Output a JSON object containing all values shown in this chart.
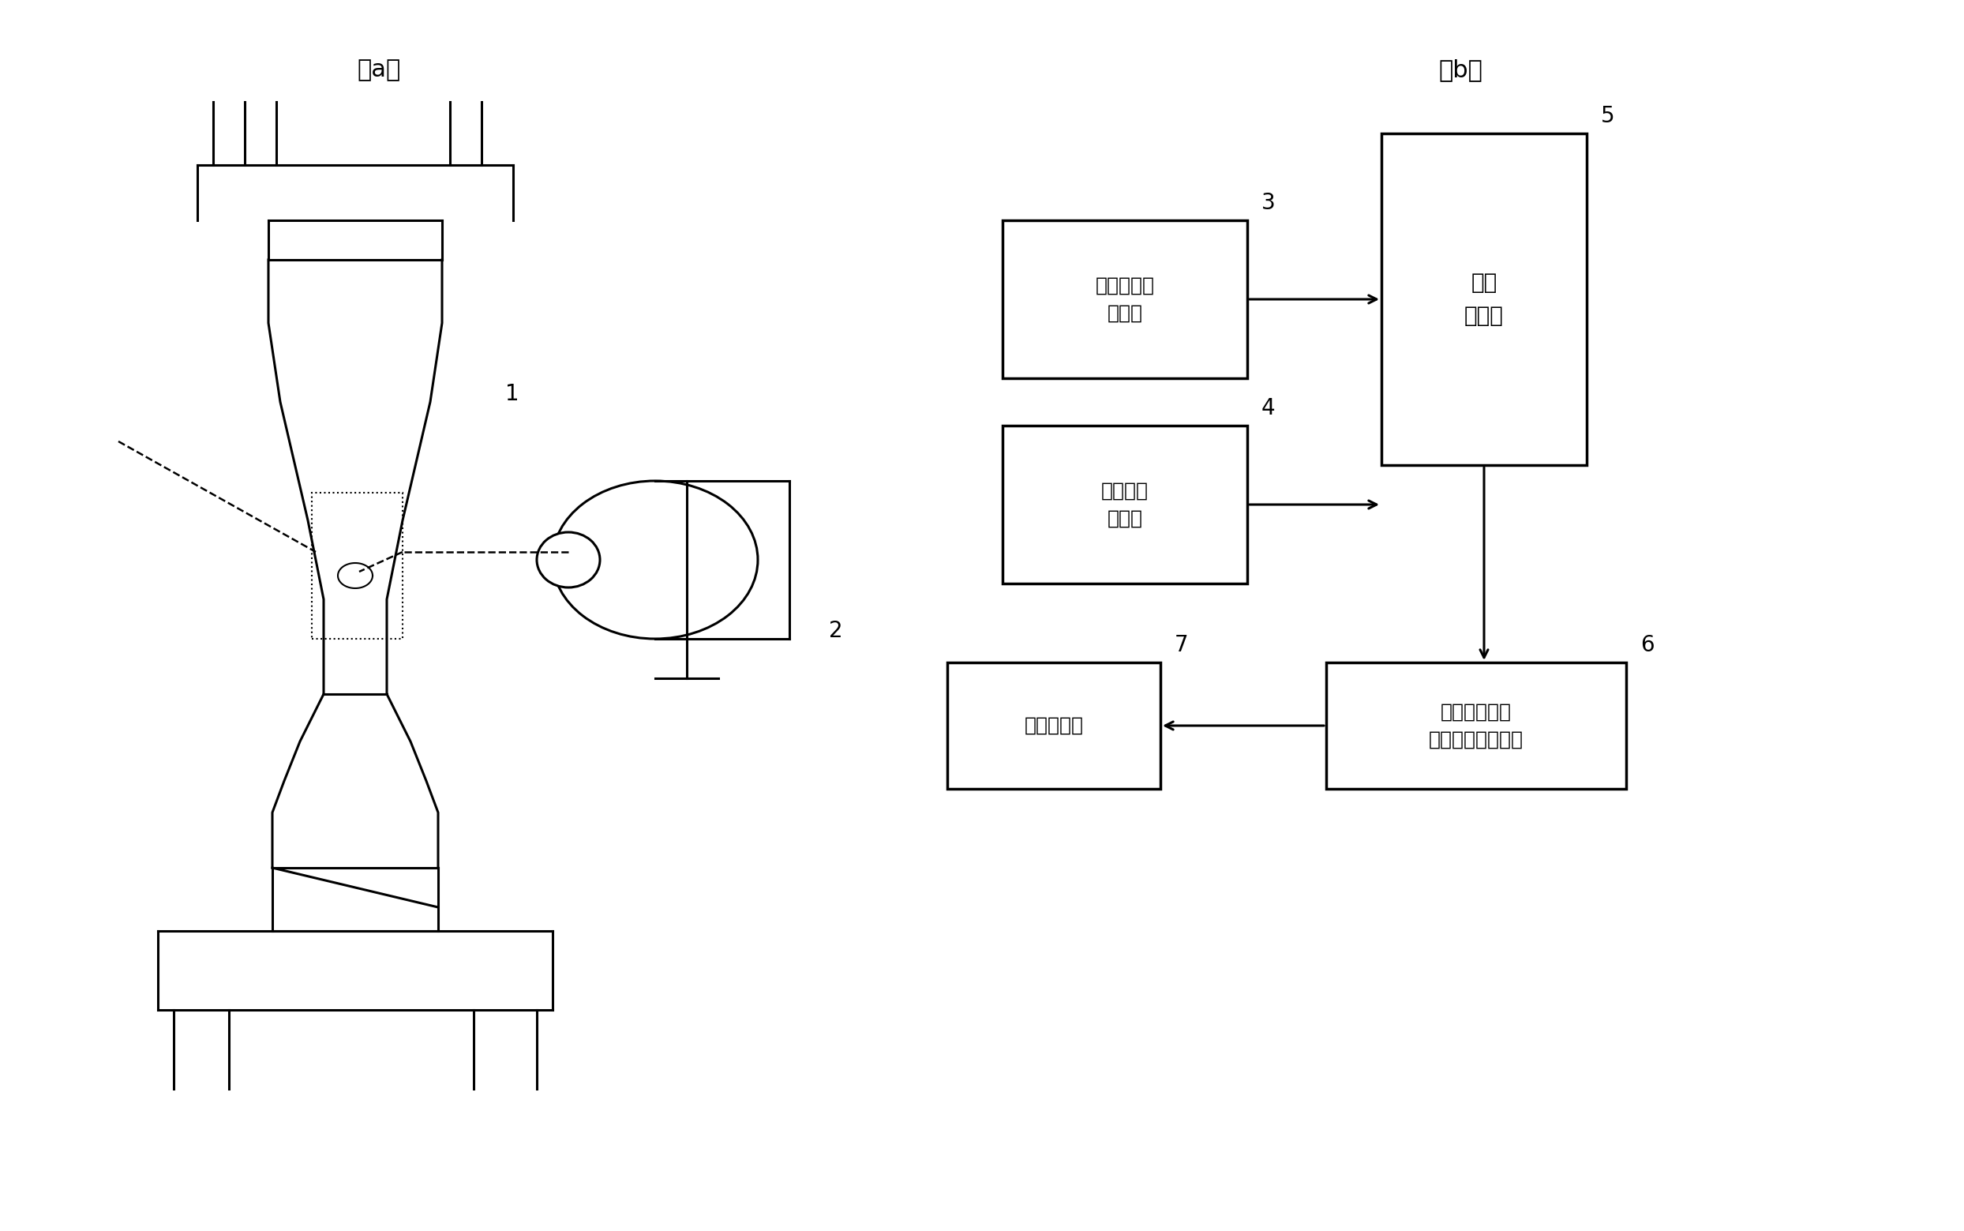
{
  "bg_color": "#f0f0f0",
  "title_a": "（a）",
  "title_b": "（b）",
  "box3_label": "熱弾性応力\n測定部",
  "box4_label": "応力発光\n測定部",
  "box5_label": "演算\n処理部",
  "box6_label": "データ出力部\n（剪断応力分布）",
  "box7_label": "画像出力部",
  "num1": "1",
  "num2": "2",
  "num3": "3",
  "num4": "4",
  "num5": "5",
  "num6": "6",
  "num7": "7",
  "font_size_label": 18,
  "font_size_num": 16,
  "font_size_title": 22
}
